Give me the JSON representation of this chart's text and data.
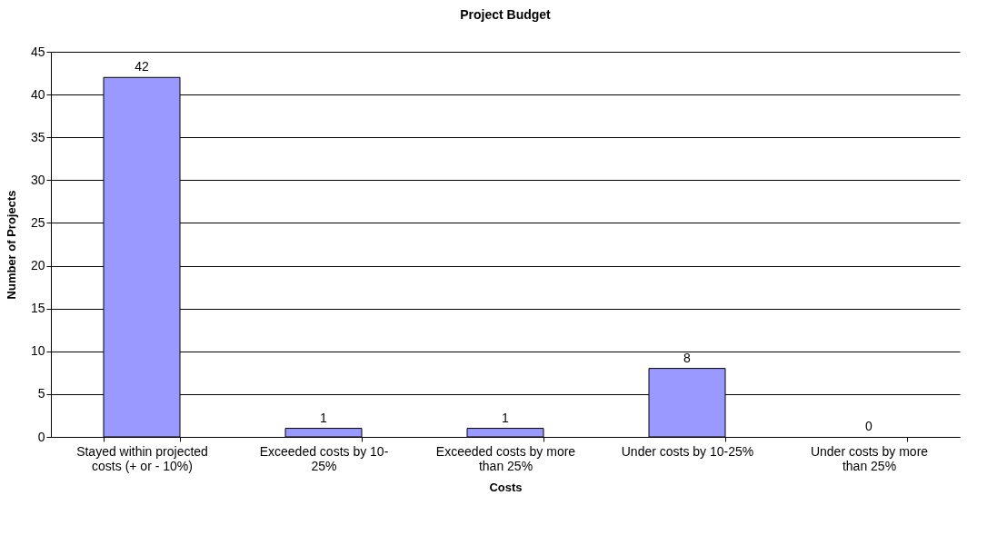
{
  "chart_data": {
    "type": "bar",
    "title": "Project Budget",
    "xlabel": "Costs",
    "ylabel": "Number of Projects",
    "categories": [
      "Stayed within projected costs (+ or - 10%)",
      "Exceeded costs by 10-25%",
      "Exceeded costs by more than 25%",
      "Under costs by 10-25%",
      "Under costs by more than 25%"
    ],
    "values": [
      42,
      1,
      1,
      8,
      0
    ],
    "color": "#9999ff",
    "ylim": [
      0,
      45
    ],
    "yticks": [
      0,
      5,
      10,
      15,
      20,
      25,
      30,
      35,
      40,
      45
    ],
    "grid": "y",
    "data_labels": true
  }
}
